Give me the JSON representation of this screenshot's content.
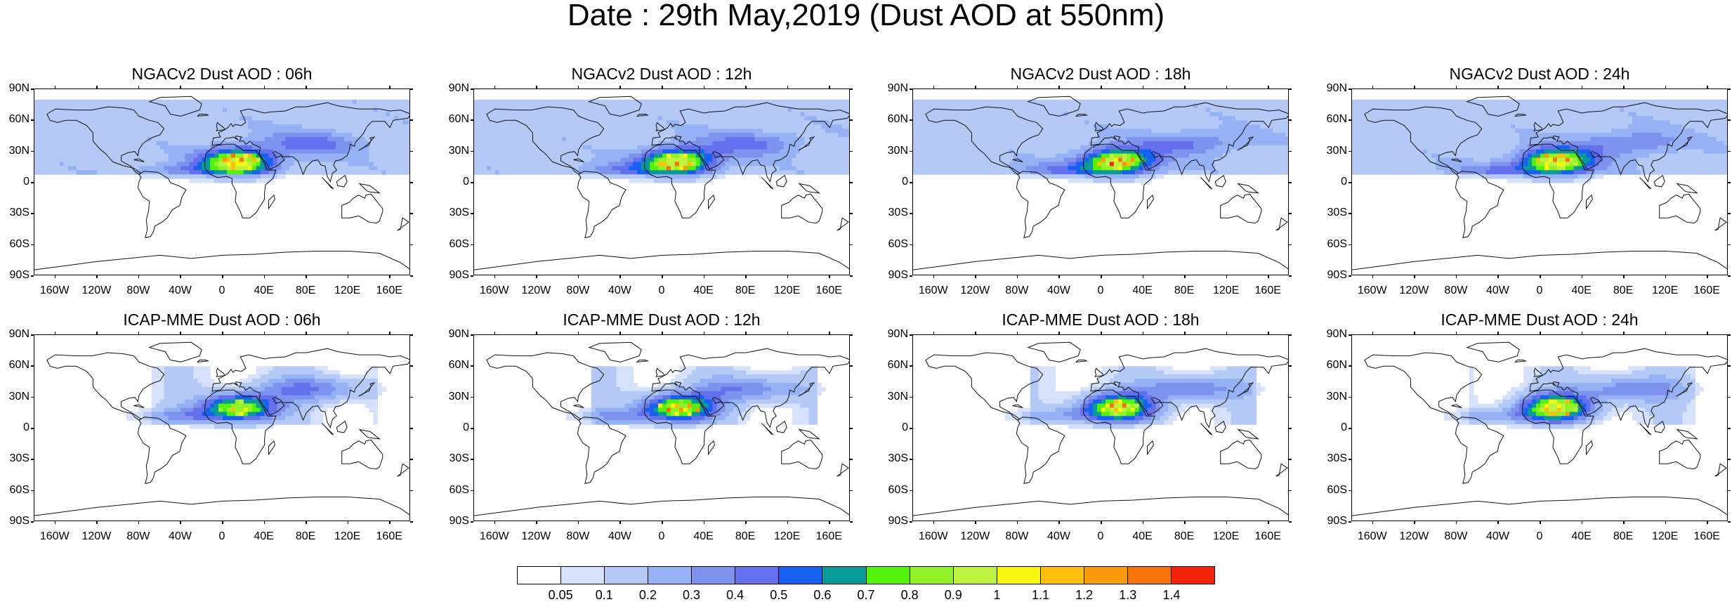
{
  "title": "Date : 29th May,2019 (Dust AOD at 550nm)",
  "panels": [
    {
      "title": "NGACv2 Dust AOD : 06h",
      "dataset": "NGACv2",
      "lead": "06h"
    },
    {
      "title": "NGACv2 Dust AOD : 12h",
      "dataset": "NGACv2",
      "lead": "12h"
    },
    {
      "title": "NGACv2 Dust AOD : 18h",
      "dataset": "NGACv2",
      "lead": "18h"
    },
    {
      "title": "NGACv2 Dust AOD : 24h",
      "dataset": "NGACv2",
      "lead": "24h"
    },
    {
      "title": "ICAP-MME Dust AOD : 06h",
      "dataset": "ICAP-MME",
      "lead": "06h"
    },
    {
      "title": "ICAP-MME Dust AOD : 12h",
      "dataset": "ICAP-MME",
      "lead": "12h"
    },
    {
      "title": "ICAP-MME Dust AOD : 18h",
      "dataset": "ICAP-MME",
      "lead": "18h"
    },
    {
      "title": "ICAP-MME Dust AOD : 24h",
      "dataset": "ICAP-MME",
      "lead": "24h"
    }
  ],
  "lat_labels": [
    "90N",
    "60N",
    "30N",
    "0",
    "30S",
    "60S",
    "90S"
  ],
  "lon_labels": [
    "160W",
    "120W",
    "80W",
    "40W",
    "0",
    "40E",
    "80E",
    "120E",
    "160E"
  ],
  "colorbar": {
    "labels": [
      "0.05",
      "0.1",
      "0.2",
      "0.3",
      "0.4",
      "0.5",
      "0.6",
      "0.7",
      "0.8",
      "0.9",
      "1",
      "1.1",
      "1.2",
      "1.3",
      "1.4"
    ],
    "colors": [
      "#ffffff",
      "#d6e2fb",
      "#b5c9f6",
      "#96b2f4",
      "#7f93ee",
      "#6470ec",
      "#1760f0",
      "#0b9a9a",
      "#53f20d",
      "#91f227",
      "#bdf241",
      "#f7f70f",
      "#fbbf0c",
      "#fb9a0b",
      "#f8740a",
      "#f4240b"
    ]
  }
}
